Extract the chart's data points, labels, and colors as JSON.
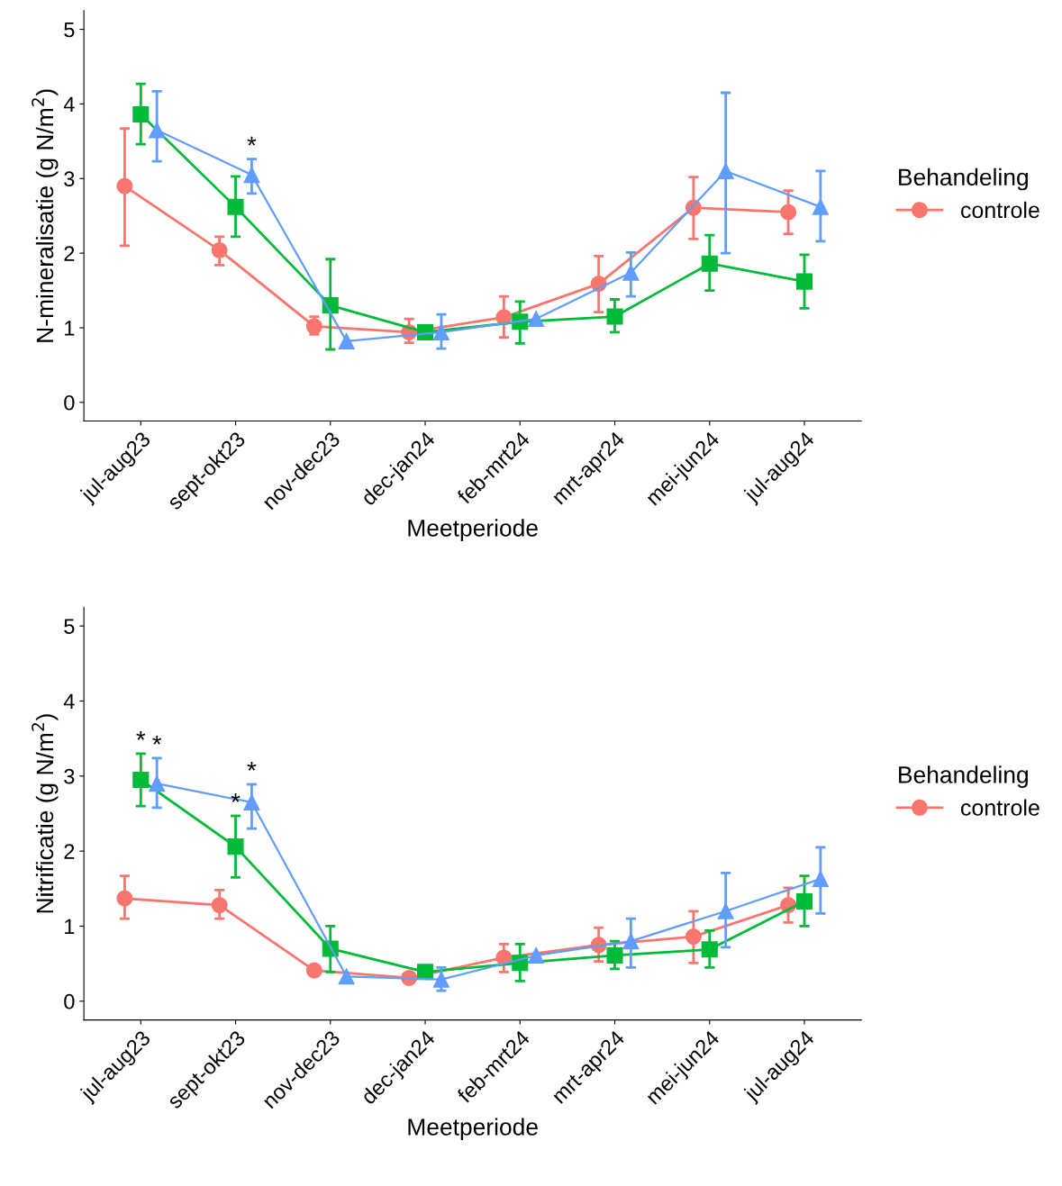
{
  "chart_data": [
    {
      "type": "line",
      "xlabel": "Meetperiode",
      "ylabel": "N-mineralisatie (g N/m$^{2}$)",
      "legend_title": "Behandeling",
      "legend": "right",
      "grid": false,
      "ylim": [
        -0.25,
        5.25
      ],
      "yticks": [
        0,
        1,
        2,
        3,
        4,
        5
      ],
      "categories": [
        "jul-aug23",
        "sept-okt23",
        "nov-dec23",
        "dec-jan24",
        "feb-mrt24",
        "mrt-apr24",
        "mei-jun24",
        "jul-aug24"
      ],
      "series": [
        {
          "name": "controle",
          "color": "#f8766d",
          "marker": "circle",
          "values": [
            2.9,
            2.04,
            1.02,
            0.94,
            1.14,
            1.59,
            2.61,
            2.55
          ],
          "errors": [
            [
              2.1,
              3.67
            ],
            [
              1.84,
              2.22
            ],
            [
              0.91,
              1.15
            ],
            [
              0.8,
              1.12
            ],
            [
              0.87,
              1.42
            ],
            [
              1.21,
              1.96
            ],
            [
              2.19,
              3.02
            ],
            [
              2.26,
              2.84
            ]
          ]
        },
        {
          "color": "#00ba38",
          "marker": "square",
          "values": [
            3.86,
            2.62,
            1.3,
            0.94,
            1.08,
            1.15,
            1.86,
            1.62
          ],
          "errors": [
            [
              3.46,
              4.27
            ],
            [
              2.22,
              3.03
            ],
            [
              0.71,
              1.92
            ],
            null,
            [
              0.79,
              1.35
            ],
            [
              0.94,
              1.38
            ],
            [
              1.5,
              2.24
            ],
            [
              1.26,
              1.98
            ]
          ]
        },
        {
          "color": "#619cff",
          "marker": "triangle",
          "values": [
            3.65,
            3.05,
            0.82,
            0.94,
            1.12,
            1.74,
            3.1,
            2.62
          ],
          "errors": [
            [
              3.23,
              4.17
            ],
            [
              2.8,
              3.26
            ],
            null,
            [
              0.72,
              1.18
            ],
            null,
            [
              1.42,
              2.01
            ],
            [
              2.0,
              4.15
            ],
            [
              2.16,
              3.1
            ]
          ],
          "value_labels": [
            null,
            "*",
            null,
            null,
            null,
            null,
            null,
            null
          ]
        }
      ]
    },
    {
      "type": "line",
      "xlabel": "Meetperiode",
      "ylabel": "Nitrificatie (g N/m$^{2}$)",
      "legend_title": "Behandeling",
      "legend": "right",
      "grid": false,
      "ylim": [
        -0.25,
        5.25
      ],
      "yticks": [
        0,
        1,
        2,
        3,
        4,
        5
      ],
      "categories": [
        "jul-aug23",
        "sept-okt23",
        "nov-dec23",
        "dec-jan24",
        "feb-mrt24",
        "mrt-apr24",
        "mei-jun24",
        "jul-aug24"
      ],
      "series": [
        {
          "name": "controle",
          "color": "#f8766d",
          "marker": "circle",
          "values": [
            1.37,
            1.28,
            0.41,
            0.31,
            0.58,
            0.75,
            0.86,
            1.28
          ],
          "errors": [
            [
              1.1,
              1.67
            ],
            [
              1.1,
              1.48
            ],
            null,
            [
              0.25,
              0.37
            ],
            [
              0.39,
              0.76
            ],
            [
              0.53,
              0.98
            ],
            [
              0.51,
              1.2
            ],
            [
              1.05,
              1.51
            ]
          ]
        },
        {
          "color": "#00ba38",
          "marker": "square",
          "values": [
            2.95,
            2.06,
            0.7,
            0.39,
            0.51,
            0.61,
            0.69,
            1.33
          ],
          "errors": [
            [
              2.6,
              3.3
            ],
            [
              1.65,
              2.47
            ],
            [
              0.39,
              1.0
            ],
            null,
            [
              0.27,
              0.76
            ],
            [
              0.43,
              0.8
            ],
            [
              0.45,
              0.94
            ],
            [
              1.0,
              1.67
            ]
          ],
          "value_labels": [
            "*",
            "*",
            null,
            null,
            null,
            null,
            null,
            null
          ]
        },
        {
          "color": "#619cff",
          "marker": "triangle",
          "values": [
            2.9,
            2.65,
            0.33,
            0.29,
            0.61,
            0.8,
            1.2,
            1.63
          ],
          "errors": [
            [
              2.58,
              3.24
            ],
            [
              2.3,
              2.89
            ],
            null,
            [
              0.14,
              0.45
            ],
            null,
            [
              0.45,
              1.1
            ],
            [
              0.72,
              1.71
            ],
            [
              1.17,
              2.05
            ]
          ],
          "value_labels": [
            "*",
            "*",
            null,
            null,
            null,
            null,
            null,
            null
          ]
        }
      ]
    }
  ]
}
